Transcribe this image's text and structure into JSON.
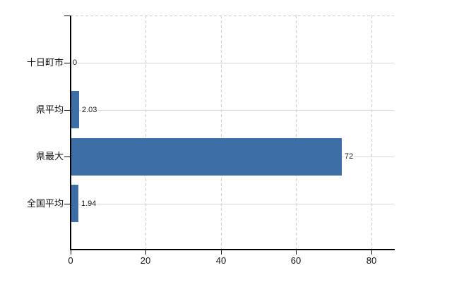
{
  "chart_data": {
    "type": "bar",
    "orientation": "horizontal",
    "title": "",
    "xlabel": "",
    "ylabel": "",
    "categories": [
      "十日町市",
      "県平均",
      "県最大",
      "全国平均"
    ],
    "values": [
      0,
      2.03,
      72,
      1.94
    ],
    "value_labels": [
      "0",
      "2.03",
      "72",
      "1.94"
    ],
    "x_ticks": [
      0,
      20,
      40,
      60,
      80
    ],
    "x_tick_labels": [
      "0",
      "20",
      "40",
      "60",
      "80"
    ],
    "xlim": [
      0,
      86
    ],
    "grid": "on",
    "legend": "none",
    "bar_color": "#3d6ea6",
    "solid_gridline_color": "#d4d8d0",
    "dashed_gridline_color": "#c9ccc8",
    "axis_color": "#000000",
    "text_color": "#111111"
  }
}
